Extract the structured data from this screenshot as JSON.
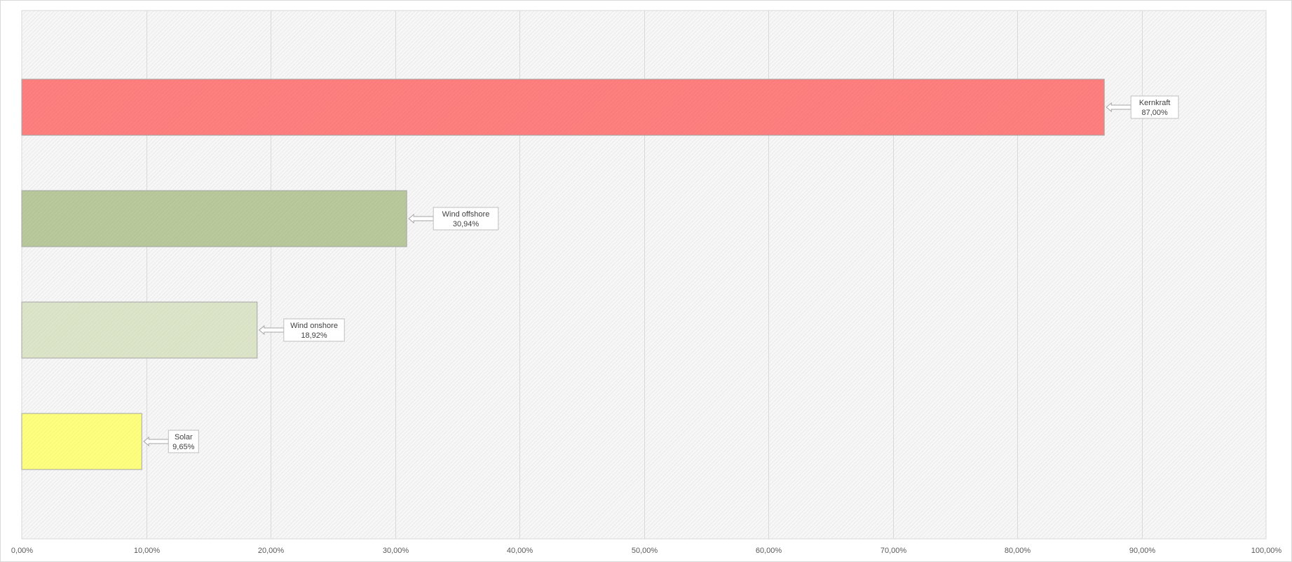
{
  "chart_data": {
    "type": "bar",
    "orientation": "horizontal",
    "categories": [
      "Kernkraft",
      "Wind offshore",
      "Wind onshore",
      "Solar"
    ],
    "values": [
      87.0,
      30.94,
      18.92,
      9.65
    ],
    "value_labels": [
      "87,00%",
      "30,94%",
      "18,92%",
      "9,65%"
    ],
    "bar_colors": [
      "#ff7f7f",
      "#b9c99b",
      "#dde5c9",
      "#ffff7f"
    ],
    "bar_border_color": "#a6a6a6",
    "title": "",
    "xlabel": "",
    "ylabel": "",
    "xlim": [
      0,
      100
    ],
    "x_ticks": [
      0,
      10,
      20,
      30,
      40,
      50,
      60,
      70,
      80,
      90,
      100
    ],
    "x_tick_labels": [
      "0,00%",
      "10,00%",
      "20,00%",
      "30,00%",
      "40,00%",
      "50,00%",
      "60,00%",
      "70,00%",
      "80,00%",
      "90,00%",
      "100,00%"
    ],
    "grid": "vertical",
    "gridline_color": "#d9d9d9",
    "plot_background": "hatched light gray",
    "legend": "none",
    "data_labels": "callout right of bar"
  }
}
